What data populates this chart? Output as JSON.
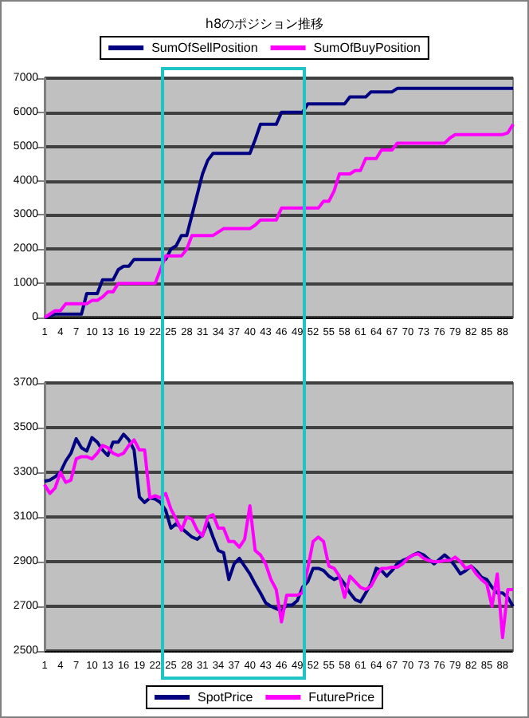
{
  "chart_data": [
    {
      "type": "line",
      "title": "h8のポジション推移",
      "legend": "top",
      "grid": "y",
      "categories": [
        "1",
        null,
        null,
        "4",
        null,
        null,
        "7",
        null,
        null,
        "10",
        null,
        null,
        "13",
        null,
        null,
        "16",
        null,
        null,
        "19",
        null,
        null,
        "22",
        null,
        null,
        "25",
        null,
        null,
        "28",
        null,
        null,
        "31",
        null,
        null,
        "34",
        null,
        null,
        "37",
        null,
        null,
        "40",
        null,
        null,
        "43",
        null,
        null,
        "46",
        null,
        null,
        "49",
        null,
        null,
        "52",
        null,
        null,
        "55",
        null,
        null,
        "58",
        null,
        null,
        "61",
        null,
        null,
        "64",
        null,
        null,
        "67",
        null,
        null,
        "70",
        null,
        null,
        "73",
        null,
        null,
        "76",
        null,
        null,
        "79",
        null,
        null,
        "82",
        null,
        null,
        "85",
        null,
        null,
        "88",
        null,
        null
      ],
      "ylim": [
        0,
        7000
      ],
      "yticks": [
        0,
        1000,
        2000,
        3000,
        4000,
        5000,
        6000,
        7000
      ],
      "series": [
        {
          "name": "SumOfSellPosition",
          "color": "#000080",
          "values": [
            0,
            50,
            100,
            100,
            100,
            100,
            100,
            100,
            700,
            700,
            700,
            1100,
            1100,
            1100,
            1400,
            1500,
            1500,
            1700,
            1700,
            1700,
            1700,
            1700,
            1700,
            1700,
            2000,
            2100,
            2400,
            2400,
            3000,
            3600,
            4200,
            4600,
            4800,
            4800,
            4800,
            4800,
            4800,
            4800,
            4800,
            4800,
            5200,
            5650,
            5650,
            5650,
            5650,
            6000,
            6000,
            6000,
            6000,
            6000,
            6250,
            6250,
            6250,
            6250,
            6250,
            6250,
            6250,
            6250,
            6450,
            6450,
            6450,
            6450,
            6600,
            6600,
            6600,
            6600,
            6600,
            6700,
            6700,
            6700,
            6700,
            6700,
            6700,
            6700,
            6700,
            6700,
            6700,
            6700,
            6700,
            6700,
            6700,
            6700,
            6700,
            6700,
            6700,
            6700,
            6700,
            6700,
            6700,
            6700
          ]
        },
        {
          "name": "SumOfBuyPosition",
          "color": "#ff00ff",
          "values": [
            0,
            100,
            200,
            200,
            400,
            400,
            400,
            400,
            400,
            500,
            500,
            600,
            750,
            750,
            1000,
            1000,
            1000,
            1000,
            1000,
            1000,
            1000,
            1000,
            1400,
            1800,
            1800,
            1800,
            1800,
            2000,
            2400,
            2400,
            2400,
            2400,
            2400,
            2500,
            2600,
            2600,
            2600,
            2600,
            2600,
            2600,
            2700,
            2850,
            2850,
            2850,
            2850,
            3200,
            3200,
            3200,
            3200,
            3200,
            3200,
            3200,
            3200,
            3400,
            3400,
            3700,
            4200,
            4200,
            4200,
            4300,
            4300,
            4650,
            4650,
            4650,
            4900,
            4900,
            4900,
            5100,
            5100,
            5100,
            5100,
            5100,
            5100,
            5100,
            5100,
            5100,
            5100,
            5250,
            5350,
            5350,
            5350,
            5350,
            5350,
            5350,
            5350,
            5350,
            5350,
            5350,
            5400,
            5650
          ]
        }
      ]
    },
    {
      "type": "line",
      "legend": "bottom",
      "grid": "y",
      "categories": [
        "1",
        null,
        null,
        "4",
        null,
        null,
        "7",
        null,
        null,
        "10",
        null,
        null,
        "13",
        null,
        null,
        "16",
        null,
        null,
        "19",
        null,
        null,
        "22",
        null,
        null,
        "25",
        null,
        null,
        "28",
        null,
        null,
        "31",
        null,
        null,
        "34",
        null,
        null,
        "37",
        null,
        null,
        "40",
        null,
        null,
        "43",
        null,
        null,
        "46",
        null,
        null,
        "49",
        null,
        null,
        "52",
        null,
        null,
        "55",
        null,
        null,
        "58",
        null,
        null,
        "61",
        null,
        null,
        "64",
        null,
        null,
        "67",
        null,
        null,
        "70",
        null,
        null,
        "73",
        null,
        null,
        "76",
        null,
        null,
        "79",
        null,
        null,
        "82",
        null,
        null,
        "85",
        null,
        null,
        "88",
        null,
        null
      ],
      "ylim": [
        2500,
        3700
      ],
      "yticks": [
        2500,
        2700,
        2900,
        3100,
        3300,
        3500,
        3700
      ],
      "series": [
        {
          "name": "SpotPrice",
          "color": "#000080",
          "values": [
            3260,
            3265,
            3280,
            3300,
            3350,
            3385,
            3450,
            3410,
            3395,
            3455,
            3435,
            3400,
            3375,
            3435,
            3435,
            3470,
            3445,
            3400,
            3190,
            3165,
            3185,
            3180,
            3165,
            3130,
            3050,
            3070,
            3050,
            3030,
            3010,
            3000,
            3020,
            3075,
            3010,
            2950,
            2940,
            2820,
            2890,
            2915,
            2880,
            2845,
            2800,
            2760,
            2715,
            2700,
            2690,
            2680,
            2705,
            2705,
            2725,
            2785,
            2810,
            2870,
            2870,
            2860,
            2835,
            2820,
            2830,
            2800,
            2760,
            2730,
            2720,
            2760,
            2800,
            2870,
            2860,
            2835,
            2860,
            2890,
            2905,
            2915,
            2930,
            2940,
            2930,
            2910,
            2890,
            2910,
            2930,
            2910,
            2880,
            2845,
            2860,
            2880,
            2860,
            2830,
            2820,
            2785,
            2760,
            2760,
            2740,
            2700
          ]
        },
        {
          "name": "FuturePrice",
          "color": "#ff00ff",
          "values": [
            3245,
            3205,
            3230,
            3300,
            3255,
            3265,
            3360,
            3370,
            3370,
            3360,
            3385,
            3420,
            3410,
            3385,
            3375,
            3385,
            3420,
            3445,
            3400,
            3400,
            3185,
            3195,
            3185,
            3205,
            3135,
            3090,
            3040,
            3100,
            3090,
            3040,
            3015,
            3100,
            3110,
            3050,
            3050,
            2990,
            2990,
            2965,
            3000,
            3150,
            2950,
            2930,
            2890,
            2820,
            2775,
            2630,
            2750,
            2750,
            2750,
            2760,
            2870,
            2990,
            3010,
            2990,
            2880,
            2870,
            2835,
            2740,
            2835,
            2810,
            2785,
            2775,
            2790,
            2835,
            2870,
            2870,
            2875,
            2875,
            2890,
            2915,
            2930,
            2935,
            2915,
            2905,
            2900,
            2900,
            2905,
            2905,
            2920,
            2900,
            2870,
            2880,
            2845,
            2820,
            2800,
            2700,
            2845,
            2560,
            2775,
            2775
          ]
        }
      ]
    }
  ]
}
